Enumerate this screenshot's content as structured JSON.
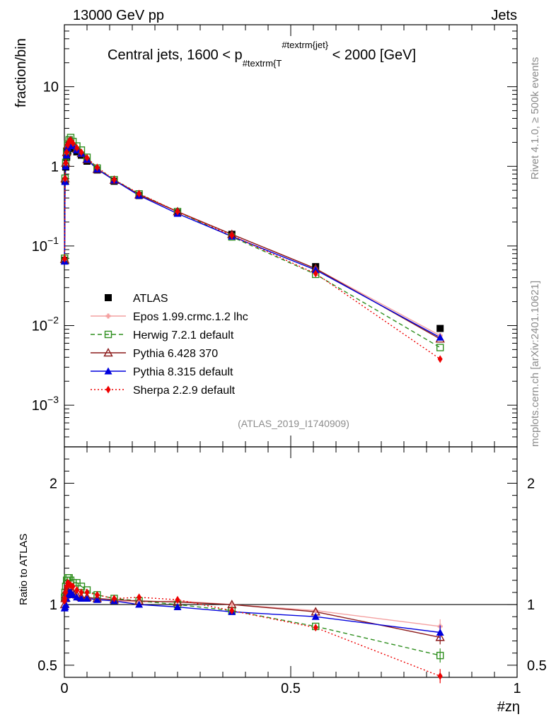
{
  "header": {
    "left": "13000 GeV pp",
    "right": "Jets"
  },
  "side_text": {
    "rivet": "Rivet 4.1.0, ≥ 500k events",
    "mcplots": "mcplots.cern.ch [arXiv:2401.10621]"
  },
  "chart_data": {
    "type": "line",
    "title": "Central jets, 1600 < p",
    "title_parts": {
      "sub1": "#textrm{T",
      "sup1": "#textrm{jet}",
      "tail": " < 2000 [GeV]"
    },
    "watermark": "(ATLAS_2019_I1740909)",
    "xlabel": "#zη",
    "ylabel": "fraction/bin",
    "ratio_ylabel": "Ratio to ATLAS",
    "xlim": [
      0,
      1
    ],
    "ylim": [
      0.0003,
      60
    ],
    "ratio_ylim": [
      0.4,
      2.3
    ],
    "yscale": "log",
    "x_ticks": [
      "0",
      "0.5",
      "1"
    ],
    "y_ticks": [
      {
        "value": 10,
        "mant": "10",
        "exp": ""
      },
      {
        "value": 1,
        "mant": "1",
        "exp": ""
      },
      {
        "value": 0.1,
        "mant": "10",
        "exp": "−1"
      },
      {
        "value": 0.01,
        "mant": "10",
        "exp": "−2"
      },
      {
        "value": 0.001,
        "mant": "10",
        "exp": "−3"
      }
    ],
    "ratio_ticks": [
      "0.5",
      "1",
      "2"
    ],
    "x": [
      0.0005,
      0.0015,
      0.003,
      0.005,
      0.0075,
      0.0105,
      0.014,
      0.019,
      0.0275,
      0.0375,
      0.05,
      0.0725,
      0.11,
      0.165,
      0.25,
      0.37,
      0.555,
      0.83
    ],
    "series": [
      {
        "name": "ATLAS",
        "color": "#000000",
        "marker": "square",
        "dash": "none",
        "values": [
          0.066,
          0.65,
          0.98,
          1.3,
          1.55,
          1.75,
          1.78,
          1.68,
          1.52,
          1.38,
          1.16,
          0.9,
          0.65,
          0.43,
          0.26,
          0.14,
          0.055,
          0.0092
        ]
      },
      {
        "name": "Epos 1.99.crmc.1.2 lhc",
        "color": "#f4a0a0",
        "marker": "cross",
        "dash": "none",
        "values": [
          0.067,
          0.68,
          1.05,
          1.45,
          1.8,
          2.0,
          2.0,
          1.85,
          1.62,
          1.46,
          1.22,
          0.93,
          0.67,
          0.44,
          0.27,
          0.14,
          0.052,
          0.0075
        ]
      },
      {
        "name": "Herwig 7.2.1 default",
        "color": "#2f8f1f",
        "marker": "open-square",
        "dash": "6,4",
        "values": [
          0.07,
          0.71,
          1.12,
          1.55,
          1.9,
          2.15,
          2.3,
          2.05,
          1.8,
          1.6,
          1.3,
          0.95,
          0.68,
          0.45,
          0.27,
          0.13,
          0.044,
          0.0053
        ]
      },
      {
        "name": "Pythia 6.428 370",
        "color": "#8b1a1a",
        "marker": "open-triangle",
        "dash": "none",
        "values": [
          0.068,
          0.7,
          1.1,
          1.5,
          1.85,
          2.05,
          2.1,
          1.9,
          1.65,
          1.45,
          1.22,
          0.92,
          0.67,
          0.44,
          0.27,
          0.14,
          0.052,
          0.0068
        ]
      },
      {
        "name": "Pythia 8.315 default",
        "color": "#0000dd",
        "marker": "triangle",
        "dash": "none",
        "values": [
          0.064,
          0.64,
          1.0,
          1.38,
          1.7,
          1.9,
          1.95,
          1.8,
          1.6,
          1.45,
          1.22,
          0.92,
          0.67,
          0.43,
          0.255,
          0.132,
          0.05,
          0.0071
        ]
      },
      {
        "name": "Sherpa 2.2.9 default",
        "color": "#ee0000",
        "marker": "diamond",
        "dash": "2,3",
        "values": [
          0.069,
          0.7,
          1.1,
          1.5,
          1.85,
          2.05,
          2.1,
          1.95,
          1.7,
          1.5,
          1.28,
          0.97,
          0.68,
          0.455,
          0.27,
          0.135,
          0.045,
          0.0038
        ]
      }
    ],
    "ratios": [
      {
        "name": "Epos 1.99.crmc.1.2 lhc",
        "values": [
          1.02,
          1.05,
          1.07,
          1.1,
          1.15,
          1.14,
          1.12,
          1.1,
          1.07,
          1.06,
          1.05,
          1.04,
          1.03,
          1.02,
          1.03,
          1.0,
          0.95,
          0.82
        ]
      },
      {
        "name": "Herwig 7.2.1 default",
        "values": [
          1.06,
          1.1,
          1.15,
          1.2,
          1.22,
          1.22,
          1.2,
          1.18,
          1.18,
          1.15,
          1.12,
          1.08,
          1.05,
          1.03,
          1.0,
          0.95,
          0.82,
          0.58
        ]
      },
      {
        "name": "Pythia 6.428 370",
        "values": [
          1.0,
          1.05,
          1.08,
          1.12,
          1.15,
          1.15,
          1.13,
          1.1,
          1.08,
          1.06,
          1.06,
          1.05,
          1.04,
          1.03,
          1.02,
          1.0,
          0.94,
          0.73
        ]
      },
      {
        "name": "Pythia 8.315 default",
        "values": [
          0.97,
          0.98,
          1.0,
          1.05,
          1.08,
          1.1,
          1.1,
          1.08,
          1.06,
          1.05,
          1.05,
          1.04,
          1.03,
          1.0,
          0.98,
          0.94,
          0.9,
          0.77
        ]
      },
      {
        "name": "Sherpa 2.2.9 default",
        "values": [
          1.03,
          1.05,
          1.1,
          1.15,
          1.18,
          1.17,
          1.16,
          1.15,
          1.12,
          1.1,
          1.1,
          1.08,
          1.05,
          1.06,
          1.04,
          0.95,
          0.81,
          0.41
        ]
      }
    ],
    "legend_position": "center-left"
  }
}
